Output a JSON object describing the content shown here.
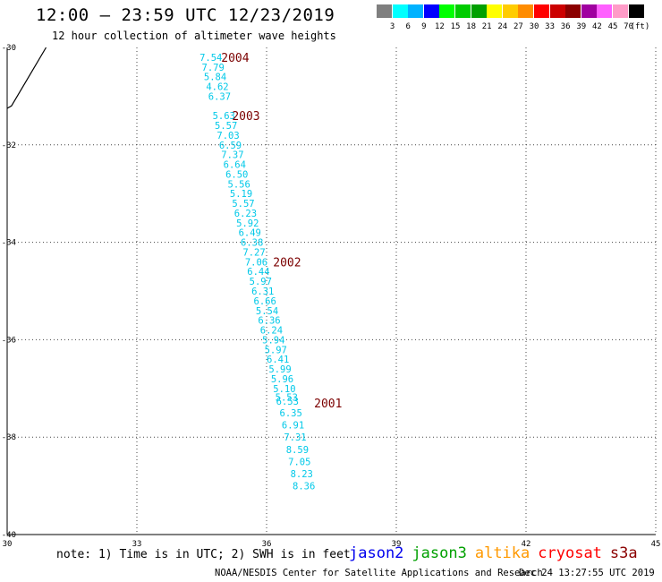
{
  "header": {
    "title": "12:00 – 23:59 UTC 12/23/2019",
    "subtitle": "12 hour collection of altimeter wave heights"
  },
  "scale": {
    "unit": "(ft)",
    "colors": [
      "#7f7f7f",
      "#00ffff",
      "#00b2ff",
      "#0000ff",
      "#00ff00",
      "#00cc00",
      "#00a000",
      "#ffff00",
      "#ffcc00",
      "#ff8c00",
      "#ff0000",
      "#cc0000",
      "#8b0000",
      "#a000a0",
      "#ff60ff",
      "#ff9cc8",
      "#000000"
    ],
    "labels": [
      "3",
      "6",
      "9",
      "12",
      "15",
      "18",
      "21",
      "24",
      "27",
      "30",
      "33",
      "36",
      "39",
      "42",
      "45",
      "70"
    ]
  },
  "chart_data": {
    "type": "scatter",
    "xlim": [
      30,
      45
    ],
    "ylim": [
      -40,
      -30
    ],
    "x_ticks": [
      "30",
      "33",
      "36",
      "39",
      "42",
      "45"
    ],
    "y_ticks": [
      "-30",
      "-32",
      "-34",
      "-36",
      "-38",
      "-40"
    ],
    "grid": true,
    "track_color": "#00c8e8",
    "label_color": "#7b0000",
    "coastline": [
      [
        30.9,
        -30.0
      ],
      [
        30.5,
        -30.6
      ],
      [
        30.1,
        -31.2
      ],
      [
        30.0,
        -31.25
      ]
    ],
    "points": [
      {
        "x": 34.45,
        "y": -30.2,
        "v": "7.54"
      },
      {
        "x": 34.5,
        "y": -30.4,
        "v": "7.79"
      },
      {
        "x": 34.55,
        "y": -30.6,
        "v": "5.84"
      },
      {
        "x": 34.6,
        "y": -30.8,
        "v": "4.62"
      },
      {
        "x": 34.65,
        "y": -31.0,
        "v": "6.37"
      },
      {
        "x": 34.75,
        "y": -31.4,
        "v": "5.63"
      },
      {
        "x": 34.8,
        "y": -31.6,
        "v": "5.57"
      },
      {
        "x": 34.85,
        "y": -31.8,
        "v": "7.03"
      },
      {
        "x": 34.9,
        "y": -32.0,
        "v": "6.59"
      },
      {
        "x": 34.95,
        "y": -32.2,
        "v": "7.37"
      },
      {
        "x": 35.0,
        "y": -32.4,
        "v": "6.64"
      },
      {
        "x": 35.05,
        "y": -32.6,
        "v": "6.50"
      },
      {
        "x": 35.1,
        "y": -32.8,
        "v": "5.56"
      },
      {
        "x": 35.15,
        "y": -33.0,
        "v": "5.19"
      },
      {
        "x": 35.2,
        "y": -33.2,
        "v": "5.57"
      },
      {
        "x": 35.25,
        "y": -33.4,
        "v": "6.23"
      },
      {
        "x": 35.3,
        "y": -33.6,
        "v": "5.92"
      },
      {
        "x": 35.35,
        "y": -33.8,
        "v": "6.49"
      },
      {
        "x": 35.4,
        "y": -34.0,
        "v": "6.38"
      },
      {
        "x": 35.45,
        "y": -34.2,
        "v": "7.27"
      },
      {
        "x": 35.5,
        "y": -34.4,
        "v": "7.06"
      },
      {
        "x": 35.55,
        "y": -34.6,
        "v": "6.44"
      },
      {
        "x": 35.6,
        "y": -34.8,
        "v": "5.97"
      },
      {
        "x": 35.65,
        "y": -35.0,
        "v": "6.31"
      },
      {
        "x": 35.7,
        "y": -35.2,
        "v": "6.66"
      },
      {
        "x": 35.75,
        "y": -35.4,
        "v": "5.54"
      },
      {
        "x": 35.8,
        "y": -35.6,
        "v": "6.36"
      },
      {
        "x": 35.85,
        "y": -35.8,
        "v": "6.24"
      },
      {
        "x": 35.9,
        "y": -36.0,
        "v": "5.94"
      },
      {
        "x": 35.95,
        "y": -36.2,
        "v": "5.97"
      },
      {
        "x": 36.0,
        "y": -36.4,
        "v": "6.41"
      },
      {
        "x": 36.05,
        "y": -36.6,
        "v": "5.99"
      },
      {
        "x": 36.1,
        "y": -36.8,
        "v": "5.96"
      },
      {
        "x": 36.15,
        "y": -37.0,
        "v": "5.10"
      },
      {
        "x": 36.2,
        "y": -37.18,
        "v": "5.53"
      },
      {
        "x": 36.22,
        "y": -37.26,
        "v": "6.53"
      },
      {
        "x": 36.3,
        "y": -37.5,
        "v": "6.35"
      },
      {
        "x": 36.35,
        "y": -37.75,
        "v": "6.91"
      },
      {
        "x": 36.4,
        "y": -38.0,
        "v": "7.31"
      },
      {
        "x": 36.45,
        "y": -38.25,
        "v": "8.59"
      },
      {
        "x": 36.5,
        "y": -38.5,
        "v": "7.05"
      },
      {
        "x": 36.55,
        "y": -38.75,
        "v": "8.23"
      },
      {
        "x": 36.6,
        "y": -39.0,
        "v": "8.36"
      }
    ],
    "time_labels": [
      {
        "x": 34.95,
        "y": -30.2,
        "text": "2004"
      },
      {
        "x": 35.2,
        "y": -31.4,
        "text": "2003"
      },
      {
        "x": 36.15,
        "y": -34.4,
        "text": "2002"
      },
      {
        "x": 37.1,
        "y": -37.3,
        "text": "2001"
      }
    ]
  },
  "footer": {
    "note": "note: 1) Time is in UTC; 2) SWH is in feet",
    "satellites": [
      {
        "name": "jason2",
        "color": "#0000ee"
      },
      {
        "name": "jason3",
        "color": "#00a000"
      },
      {
        "name": "altika",
        "color": "#ff9900"
      },
      {
        "name": "cryosat",
        "color": "#ff0000"
      },
      {
        "name": "s3a",
        "color": "#8b0000"
      }
    ],
    "credit": "NOAA/NESDIS Center for Satellite Applications and Research",
    "timestamp": "Dec 24 13:27:55 UTC 2019"
  }
}
